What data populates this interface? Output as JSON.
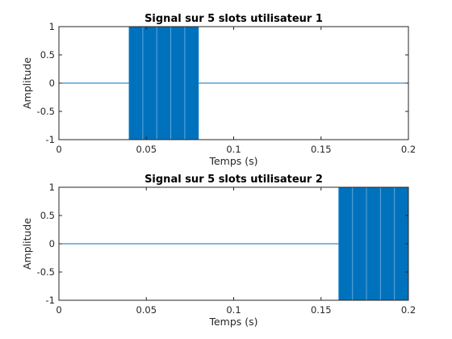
{
  "chart_data": [
    {
      "type": "line",
      "title": "Signal sur 5 slots utilisateur 1",
      "xlabel": "Temps (s)",
      "ylabel": "Amplitude",
      "xlim": [
        0,
        0.2
      ],
      "ylim": [
        -1,
        1
      ],
      "xticks": [
        0,
        0.05,
        0.1,
        0.15,
        0.2
      ],
      "xtick_labels": [
        "0",
        "0.05",
        "0.1",
        "0.15",
        "0.2"
      ],
      "yticks": [
        -1,
        -0.5,
        0,
        0.5,
        1
      ],
      "ytick_labels": [
        "-1",
        "-0.5",
        "0",
        "0.5",
        "1"
      ],
      "grid": false,
      "series": [
        {
          "color": "#0072BD",
          "baseline": 0,
          "active_interval": [
            0.04,
            0.08
          ],
          "active_amplitude": 1,
          "slot_edges": [
            0.04,
            0.048,
            0.056,
            0.064,
            0.072,
            0.08
          ]
        }
      ]
    },
    {
      "type": "line",
      "title": "Signal sur 5 slots utilisateur 2",
      "xlabel": "Temps (s)",
      "ylabel": "Amplitude",
      "xlim": [
        0,
        0.2
      ],
      "ylim": [
        -1,
        1
      ],
      "xticks": [
        0,
        0.05,
        0.1,
        0.15,
        0.2
      ],
      "xtick_labels": [
        "0",
        "0.05",
        "0.1",
        "0.15",
        "0.2"
      ],
      "yticks": [
        -1,
        -0.5,
        0,
        0.5,
        1
      ],
      "ytick_labels": [
        "-1",
        "-0.5",
        "0",
        "0.5",
        "1"
      ],
      "grid": false,
      "series": [
        {
          "color": "#0072BD",
          "baseline": 0,
          "active_interval": [
            0.16,
            0.2
          ],
          "active_amplitude": 1,
          "slot_edges": [
            0.16,
            0.168,
            0.176,
            0.184,
            0.192,
            0.2
          ]
        }
      ]
    }
  ]
}
